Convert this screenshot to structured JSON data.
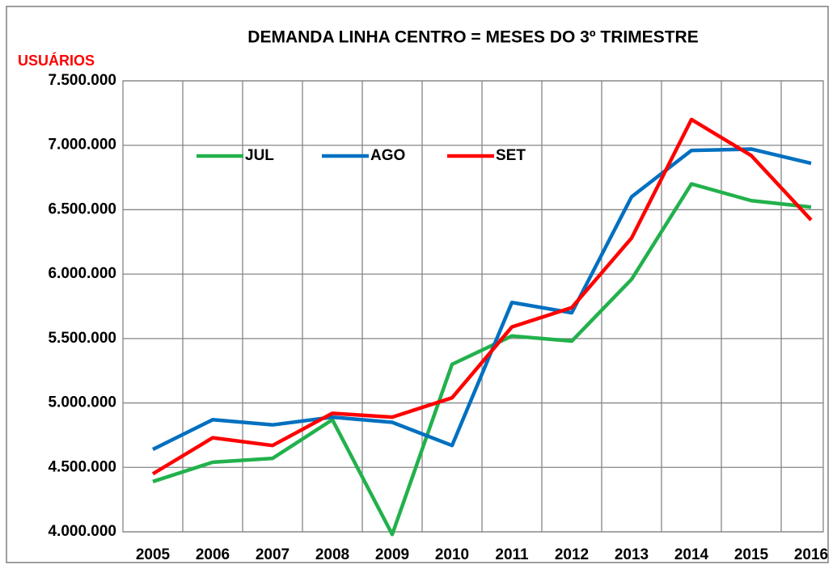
{
  "chart_data": {
    "type": "line",
    "title": "DEMANDA LINHA CENTRO =  MESES DO 3º TRIMESTRE",
    "y_label": "USUÁRIOS",
    "categories": [
      "2005",
      "2006",
      "2007",
      "2008",
      "2009",
      "2010",
      "2011",
      "2012",
      "2013",
      "2014",
      "2015",
      "2016"
    ],
    "series": [
      {
        "name": "JUL",
        "color": "#22b14c",
        "values": [
          4390000,
          4540000,
          4570000,
          4870000,
          3980000,
          5300000,
          5520000,
          5480000,
          5960000,
          6700000,
          6570000,
          6520000
        ]
      },
      {
        "name": "AGO",
        "color": "#0070c0",
        "values": [
          4640000,
          4870000,
          4830000,
          4890000,
          4850000,
          4670000,
          5780000,
          5700000,
          6600000,
          6960000,
          6970000,
          6860000
        ]
      },
      {
        "name": "SET",
        "color": "#ff0000",
        "values": [
          4450000,
          4730000,
          4670000,
          4920000,
          4890000,
          5040000,
          5590000,
          5740000,
          6280000,
          7200000,
          6920000,
          6420000
        ]
      }
    ],
    "ylim": [
      4000000,
      7500000
    ],
    "yticks": [
      {
        "value": 4000000,
        "label": "4.000.000"
      },
      {
        "value": 4500000,
        "label": "4.500.000"
      },
      {
        "value": 5000000,
        "label": "5.000.000"
      },
      {
        "value": 5500000,
        "label": "5.500.000"
      },
      {
        "value": 6000000,
        "label": "6.000.000"
      },
      {
        "value": 6500000,
        "label": "6.500.000"
      },
      {
        "value": 7000000,
        "label": "7.000.000"
      },
      {
        "value": 7500000,
        "label": "7.500.000"
      }
    ],
    "grid": true,
    "legend": "top"
  }
}
